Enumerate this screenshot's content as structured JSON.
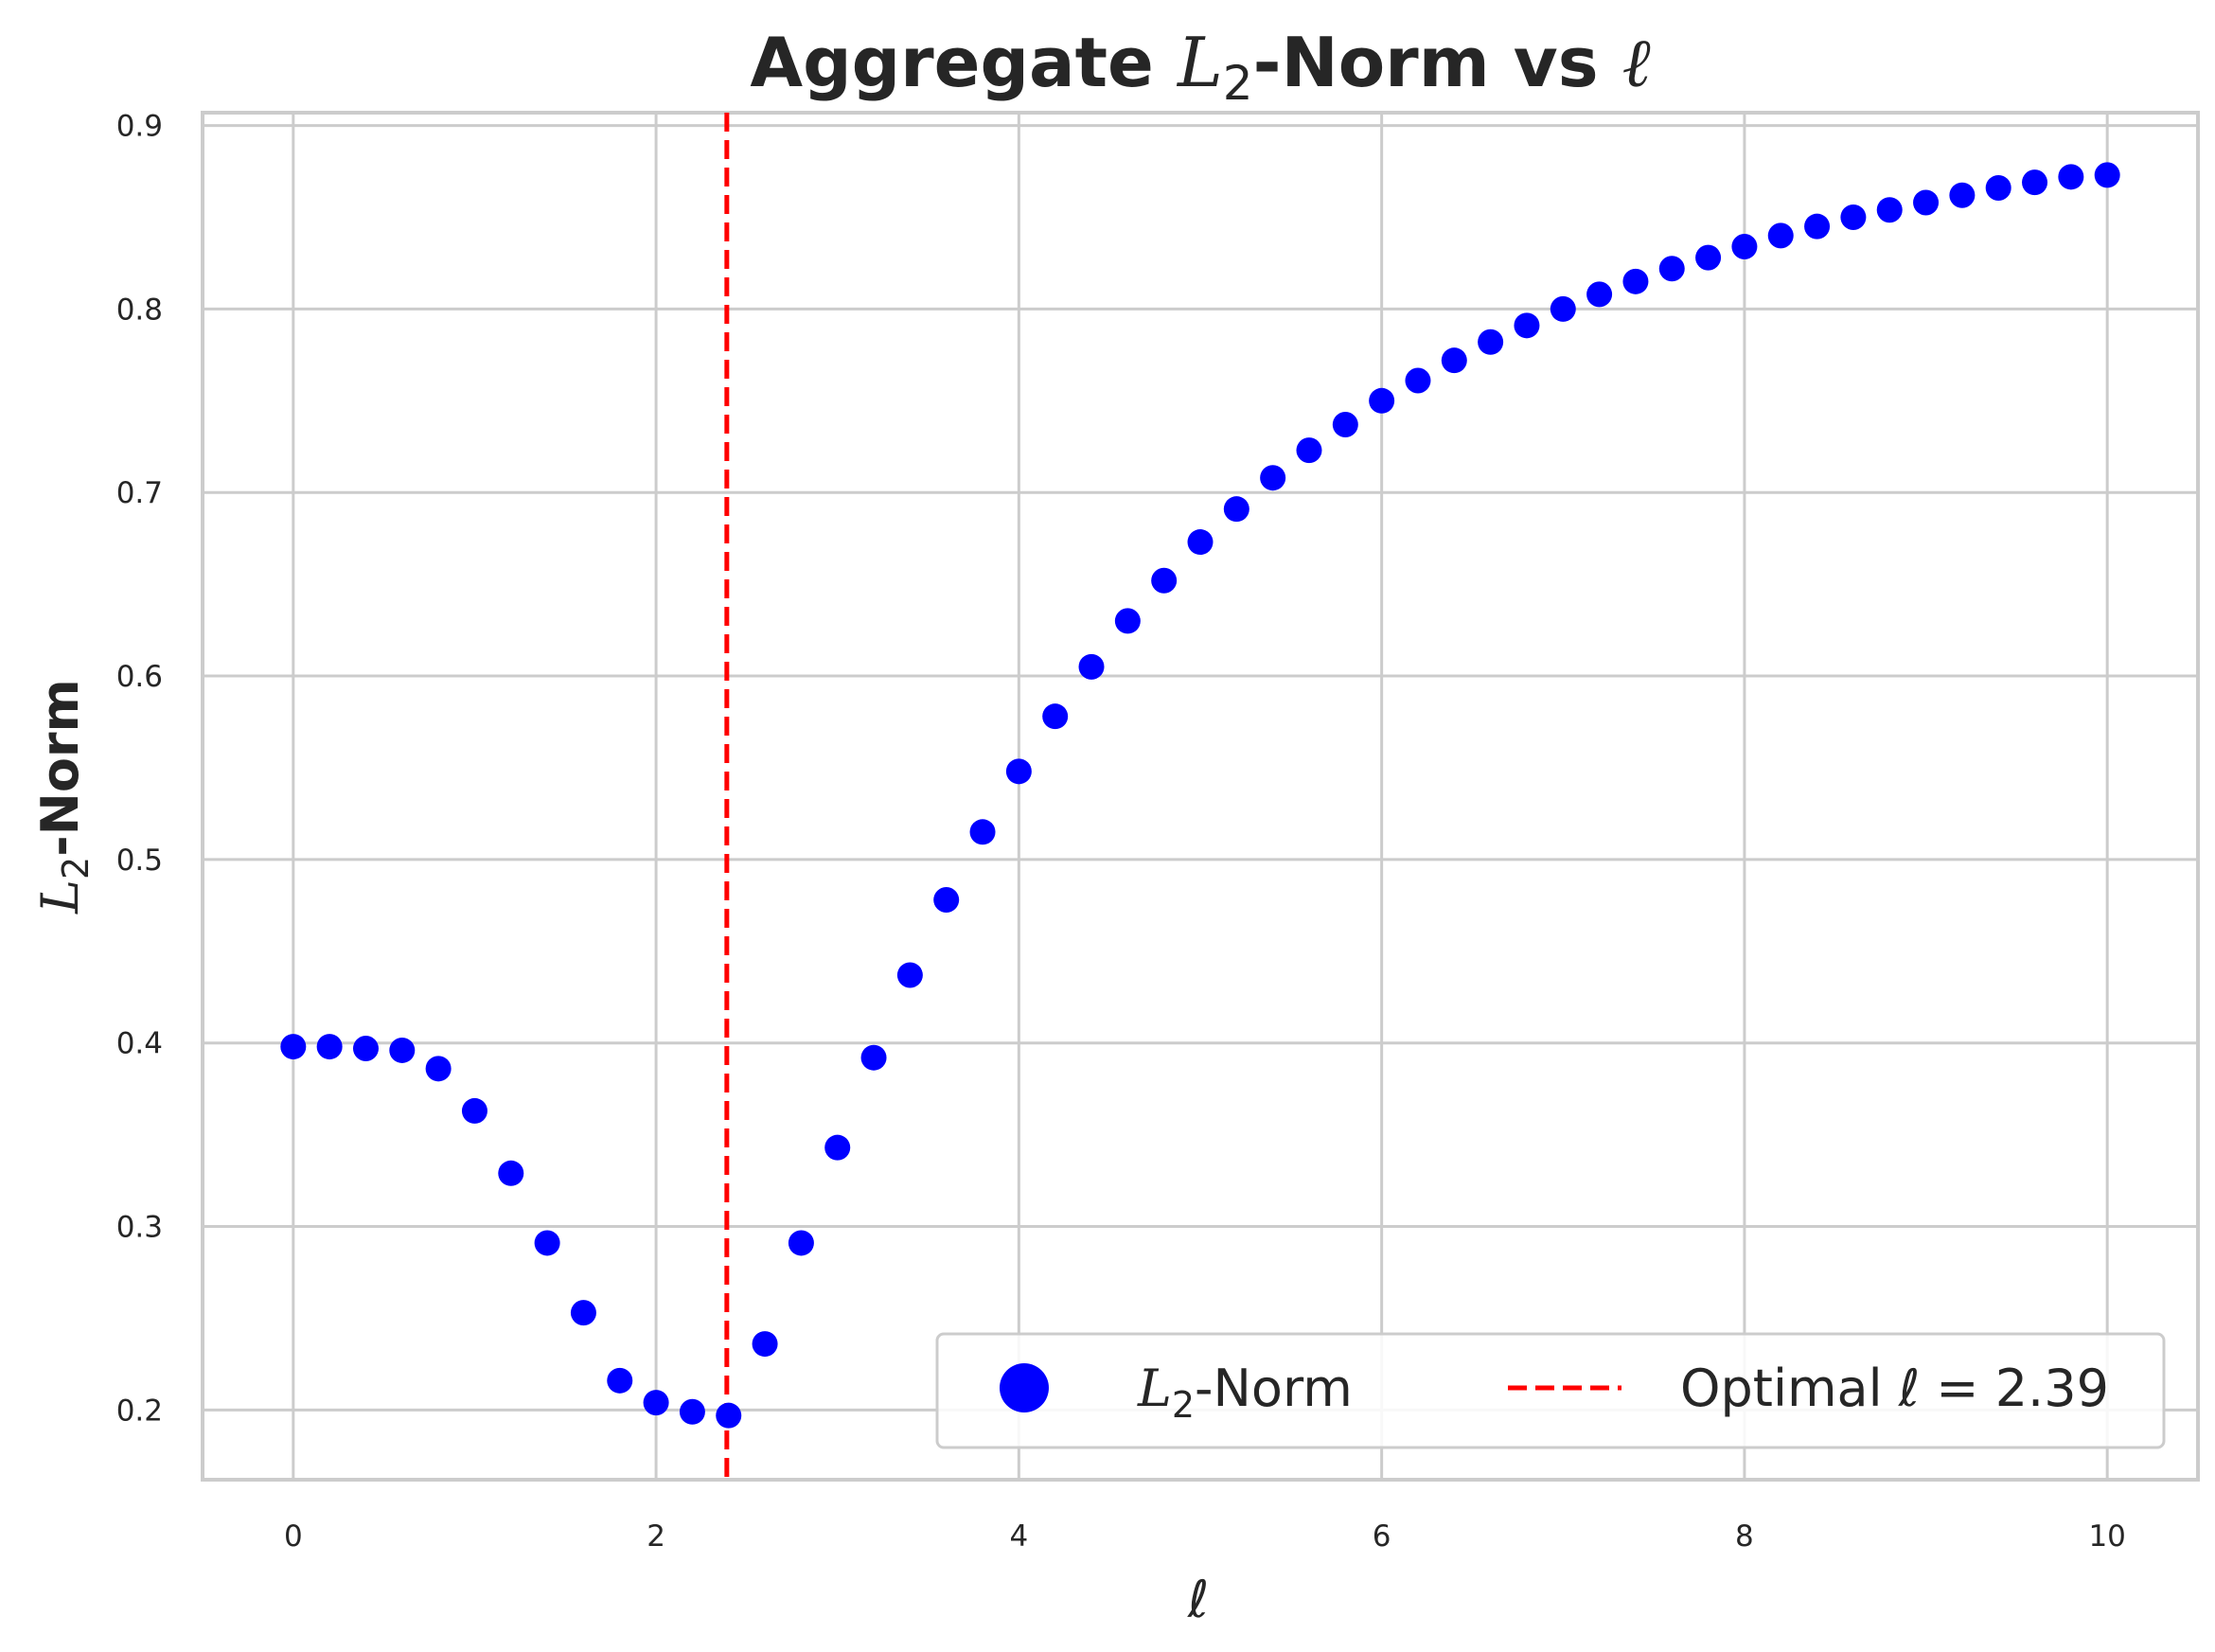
{
  "chart_data": {
    "type": "scatter",
    "title": {
      "prefix": "Aggregate ",
      "symbol": "L",
      "subscript": "2",
      "suffix": "-Norm vs ",
      "ell": "ℓ"
    },
    "xlabel": "ℓ",
    "ylabel": {
      "symbol": "L",
      "subscript": "2",
      "suffix": "-Norm"
    },
    "xlim": [
      -0.5,
      10.5
    ],
    "ylim": [
      0.162,
      0.907
    ],
    "xticks": [
      0,
      2,
      4,
      6,
      8,
      10
    ],
    "xtick_labels": [
      "0",
      "2",
      "4",
      "6",
      "8",
      "10"
    ],
    "yticks": [
      0.2,
      0.3,
      0.4,
      0.5,
      0.6,
      0.7,
      0.8,
      0.9
    ],
    "ytick_labels": [
      "0.2",
      "0.3",
      "0.4",
      "0.5",
      "0.6",
      "0.7",
      "0.8",
      "0.9"
    ],
    "grid": true,
    "legend_position": "lower-right",
    "series": [
      {
        "kind": "scatter",
        "color": "#0000ff",
        "legend_label": {
          "symbol": "L",
          "subscript": "2",
          "suffix": "-Norm"
        },
        "x": [
          0,
          0.2,
          0.4,
          0.6,
          0.8,
          1.0,
          1.2,
          1.4,
          1.6,
          1.8,
          2.0,
          2.2,
          2.4,
          2.6,
          2.8,
          3.0,
          3.2,
          3.4,
          3.6,
          3.8,
          4.0,
          4.2,
          4.4,
          4.6,
          4.8,
          5.0,
          5.2,
          5.4,
          5.6,
          5.8,
          6.0,
          6.2,
          6.4,
          6.6,
          6.8,
          7.0,
          7.2,
          7.4,
          7.6,
          7.8,
          8.0,
          8.2,
          8.4,
          8.6,
          8.8,
          9.0,
          9.2,
          9.4,
          9.6,
          9.8,
          10.0
        ],
        "y": [
          0.398,
          0.398,
          0.397,
          0.396,
          0.386,
          0.363,
          0.329,
          0.291,
          0.253,
          0.216,
          0.204,
          0.199,
          0.197,
          0.236,
          0.291,
          0.343,
          0.392,
          0.437,
          0.478,
          0.515,
          0.548,
          0.578,
          0.605,
          0.63,
          0.652,
          0.673,
          0.691,
          0.708,
          0.723,
          0.737,
          0.75,
          0.761,
          0.772,
          0.782,
          0.791,
          0.8,
          0.808,
          0.815,
          0.822,
          0.828,
          0.834,
          0.84,
          0.845,
          0.85,
          0.854,
          0.858,
          0.862,
          0.866,
          0.869,
          0.872,
          0.873
        ]
      },
      {
        "kind": "vline",
        "color": "#ff0000",
        "x": 2.39,
        "legend_label": "Optimal ℓ = 2.39"
      }
    ]
  },
  "colors": {
    "points": "#0000ff",
    "optimal_line": "#ff0000",
    "grid": "#cccccc",
    "text": "#262626"
  }
}
